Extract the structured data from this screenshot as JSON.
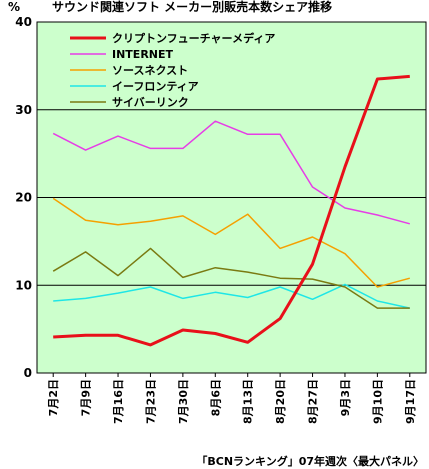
{
  "chart_data": {
    "type": "line",
    "title": "サウンド関連ソフト メーカー別販売本数シェア推移",
    "yunit": "%",
    "caption": "「BCNランキング」07年週次〈最大パネル〉",
    "ylim": [
      0,
      40
    ],
    "yticks": [
      0,
      10,
      20,
      30,
      40
    ],
    "grid": true,
    "legend_position": "top-right",
    "categories": [
      "7月2日",
      "7月9日",
      "7月16日",
      "7月23日",
      "7月30日",
      "8月6日",
      "8月13日",
      "8月20日",
      "8月27日",
      "9月3日",
      "9月10日",
      "9月17日"
    ],
    "series": [
      {
        "name": "クリプトンフューチャーメディア",
        "color": "#e8101a",
        "width": 3,
        "values": [
          4.1,
          4.3,
          4.3,
          3.2,
          4.9,
          4.5,
          3.5,
          6.2,
          12.4,
          23.5,
          33.5,
          33.8
        ]
      },
      {
        "name": "INTERNET",
        "color": "#e63de6",
        "width": 1.5,
        "values": [
          27.3,
          25.4,
          27.0,
          25.6,
          25.6,
          28.7,
          27.2,
          27.2,
          21.2,
          18.8,
          18.0,
          17.0
        ]
      },
      {
        "name": "ソースネクスト",
        "color": "#f5a000",
        "width": 1.5,
        "values": [
          19.9,
          17.4,
          16.9,
          17.3,
          17.9,
          15.8,
          18.1,
          14.2,
          15.5,
          13.6,
          9.8,
          10.8
        ]
      },
      {
        "name": "イーフロンティア",
        "color": "#1ee6e6",
        "width": 1.5,
        "values": [
          8.2,
          8.5,
          9.1,
          9.8,
          8.5,
          9.2,
          8.6,
          9.8,
          8.4,
          10.1,
          8.2,
          7.4
        ]
      },
      {
        "name": "サイバーリンク",
        "color": "#7a7a12",
        "width": 1.5,
        "values": [
          11.6,
          13.8,
          11.1,
          14.2,
          10.9,
          12.0,
          11.5,
          10.8,
          10.7,
          9.8,
          7.4,
          7.4
        ]
      }
    ]
  }
}
